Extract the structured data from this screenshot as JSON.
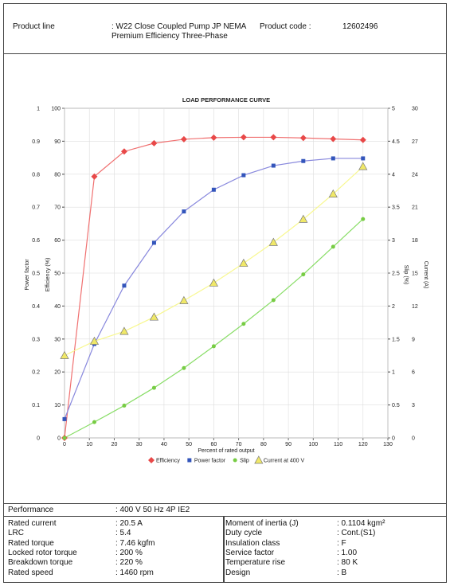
{
  "header": {
    "product_line_label": "Product line",
    "product_line": ": W22 Close Coupled Pump JP NEMA Premium Efficiency Three-Phase",
    "product_code_label": "Product code :",
    "product_code": "12602496"
  },
  "chart_data": {
    "type": "line",
    "title": "LOAD PERFORMANCE CURVE",
    "x_label": "Percent of rated output",
    "x": [
      0,
      12,
      24,
      36,
      48,
      60,
      72,
      84,
      96,
      108,
      120
    ],
    "xlim": [
      0,
      130
    ],
    "xticks": [
      0,
      10,
      20,
      30,
      40,
      50,
      60,
      70,
      80,
      90,
      100,
      110,
      120,
      130
    ],
    "grid": true,
    "y_axes": [
      {
        "label": "Power factor",
        "side": "left",
        "lim": [
          0,
          1
        ],
        "ticks": [
          0,
          0.1,
          0.2,
          0.3,
          0.4,
          0.5,
          0.6,
          0.7,
          0.8,
          0.9,
          1
        ]
      },
      {
        "label": "Efficiency (%)",
        "side": "left",
        "lim": [
          0,
          100
        ],
        "ticks": [
          0,
          10,
          20,
          30,
          40,
          50,
          60,
          70,
          80,
          90,
          100
        ]
      },
      {
        "label": "Slip (%)",
        "side": "right",
        "lim": [
          0,
          5
        ],
        "ticks": [
          0,
          0.5,
          1,
          1.5,
          2,
          2.5,
          3,
          3.5,
          4,
          4.5,
          5
        ]
      },
      {
        "label": "Current (A)",
        "side": "right",
        "lim": [
          0,
          30
        ],
        "ticks": [
          0,
          3,
          6,
          9,
          12,
          15,
          18,
          21,
          24,
          27,
          30
        ]
      }
    ],
    "series": [
      {
        "name": "Efficiency",
        "axis": 1,
        "marker": "diamond",
        "color": "#e84848",
        "line_color": "#f07070",
        "values": [
          0,
          79.3,
          86.9,
          89.4,
          90.6,
          91.1,
          91.2,
          91.2,
          91.0,
          90.7,
          90.4
        ]
      },
      {
        "name": "Power factor",
        "axis": 0,
        "marker": "square",
        "color": "#3355bb",
        "line_color": "#8888dd",
        "values": [
          0.057,
          0.285,
          0.462,
          0.592,
          0.687,
          0.753,
          0.797,
          0.826,
          0.84,
          0.848,
          0.848
        ]
      },
      {
        "name": "Slip",
        "axis": 2,
        "marker": "circle",
        "color": "#77cc44",
        "line_color": "#88dd66",
        "values": [
          0,
          0.24,
          0.49,
          0.76,
          1.06,
          1.39,
          1.73,
          2.09,
          2.48,
          2.9,
          3.32
        ]
      },
      {
        "name": "Current at 400 V",
        "axis": 3,
        "marker": "triangle",
        "color": "#f0e868",
        "line_color": "#f8f890",
        "values": [
          7.5,
          8.8,
          9.7,
          11.0,
          12.5,
          14.1,
          15.9,
          17.8,
          19.9,
          22.2,
          24.7
        ]
      }
    ]
  },
  "performance": {
    "label": "Performance",
    "value": ": 400 V 50 Hz 4P IE2"
  },
  "specs_left": [
    [
      "Rated current",
      ": 20.5 A"
    ],
    [
      "LRC",
      ": 5.4"
    ],
    [
      "Rated torque",
      ": 7.46 kgfm"
    ],
    [
      "Locked rotor torque",
      ": 200 %"
    ],
    [
      "Breakdown torque",
      ": 220 %"
    ],
    [
      "Rated speed",
      ": 1460 rpm"
    ]
  ],
  "specs_right": [
    [
      "Moment of inertia (J)",
      ": 0.1104 kgm²"
    ],
    [
      "Duty cycle",
      ": Cont.(S1)"
    ],
    [
      "Insulation class",
      ": F"
    ],
    [
      "Service factor",
      ": 1.00"
    ],
    [
      "Temperature rise",
      ": 80 K"
    ],
    [
      "Design",
      ": B"
    ]
  ]
}
